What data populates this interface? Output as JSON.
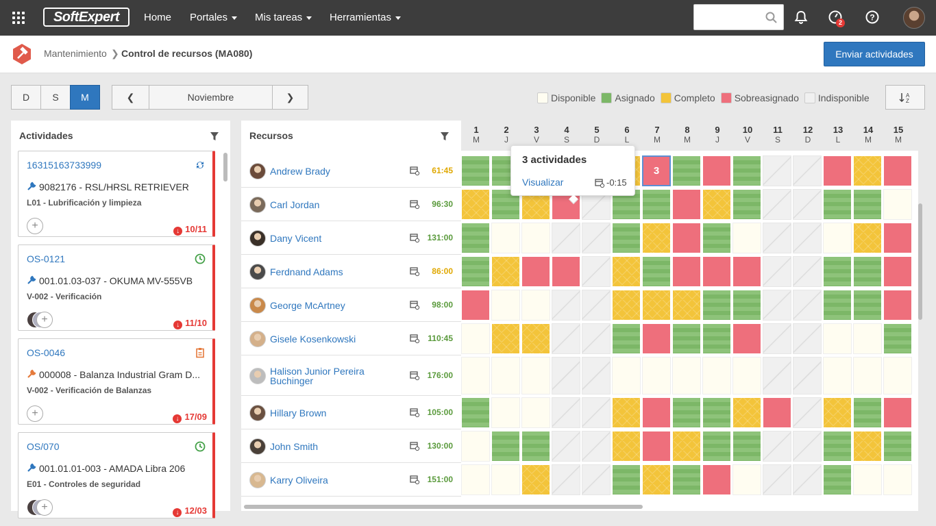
{
  "topbar": {
    "logo": "SoftExpert",
    "nav": [
      "Home",
      "Portales",
      "Mis tareas",
      "Herramientas"
    ],
    "notification_badge": "2"
  },
  "breadcrumb": {
    "parent": "Mantenimiento",
    "sep": "❯",
    "current": "Control de recursos (MA080)"
  },
  "actions": {
    "send": "Enviar actividades"
  },
  "view_modes": [
    "D",
    "S",
    "M"
  ],
  "period": {
    "prev": "❮",
    "label": "Noviembre",
    "next": "❯"
  },
  "legend": [
    {
      "label": "Disponible",
      "color": "#fffdf1"
    },
    {
      "label": "Asignado",
      "color": "#7cb767"
    },
    {
      "label": "Completo",
      "color": "#f3c43a"
    },
    {
      "label": "Sobreasignado",
      "color": "#ee6f7c"
    },
    {
      "label": "Indisponible",
      "color": "#f0f0f0"
    }
  ],
  "activities": {
    "title": "Actividades",
    "cards": [
      {
        "id": "16315163733999",
        "asset": "9082176 - RSL/HRSL RETRIEVER",
        "task": "L01 - Lubrificación y limpieza",
        "date": "10/11",
        "status_icon": "sync-icon",
        "status_color": "#2f77be"
      },
      {
        "id": "OS-0121",
        "asset": "001.01.03-037 - OKUMA MV-555VB",
        "task": "V-002 - Verificación",
        "date": "11/10",
        "status_icon": "clock-icon",
        "status_color": "#43a047"
      },
      {
        "id": "OS-0046",
        "asset": "000008 - Balanza Industrial Gram D...",
        "task": "V-002 - Verificación de Balanzas",
        "date": "17/09",
        "status_icon": "clipboard-icon",
        "status_color": "#e57a3c"
      },
      {
        "id": "OS/070",
        "asset": "001.01.01-003 - AMADA Libra 206",
        "task": "E01 - Controles de seguridad",
        "date": "12/03",
        "status_icon": "clock-icon",
        "status_color": "#43a047"
      }
    ]
  },
  "resources": {
    "title": "Recursos",
    "rows": [
      {
        "name": "Andrew Brady",
        "hours": "61:45",
        "hours_color": "#e0a800",
        "avatar": "#6b4b3a"
      },
      {
        "name": "Carl Jordan",
        "hours": "96:30",
        "hours_color": "#5a9a3c",
        "avatar": "#7a6a5a"
      },
      {
        "name": "Dany Vicent",
        "hours": "131:00",
        "hours_color": "#5a9a3c",
        "avatar": "#3a3028"
      },
      {
        "name": "Ferdnand Adams",
        "hours": "86:00",
        "hours_color": "#e0a800",
        "avatar": "#4a4a4a"
      },
      {
        "name": "George McArtney",
        "hours": "98:00",
        "hours_color": "#5a9a3c",
        "avatar": "#c9894a"
      },
      {
        "name": "Gisele Kosenkowski",
        "hours": "110:45",
        "hours_color": "#5a9a3c",
        "avatar": "#d4b08a"
      },
      {
        "name": "Halison Junior Pereira Buchinger",
        "hours": "176:00",
        "hours_color": "#5a9a3c",
        "avatar": "#bdbdbd"
      },
      {
        "name": "Hillary Brown",
        "hours": "105:00",
        "hours_color": "#5a9a3c",
        "avatar": "#6a5040"
      },
      {
        "name": "John Smith",
        "hours": "130:00",
        "hours_color": "#5a9a3c",
        "avatar": "#4a4038"
      },
      {
        "name": "Karry Oliveira",
        "hours": "151:00",
        "hours_color": "#5a9a3c",
        "avatar": "#d8b890"
      }
    ]
  },
  "days": [
    {
      "n": "1",
      "d": "M"
    },
    {
      "n": "2",
      "d": "J"
    },
    {
      "n": "3",
      "d": "V"
    },
    {
      "n": "4",
      "d": "S"
    },
    {
      "n": "5",
      "d": "D"
    },
    {
      "n": "6",
      "d": "L"
    },
    {
      "n": "7",
      "d": "M"
    },
    {
      "n": "8",
      "d": "M"
    },
    {
      "n": "9",
      "d": "J"
    },
    {
      "n": "10",
      "d": "V"
    },
    {
      "n": "11",
      "d": "S"
    },
    {
      "n": "12",
      "d": "D"
    },
    {
      "n": "13",
      "d": "L"
    },
    {
      "n": "14",
      "d": "M"
    },
    {
      "n": "15",
      "d": "M"
    }
  ],
  "grid": [
    [
      "as",
      "as",
      "as",
      "as",
      "un",
      "co",
      "ov",
      "as",
      "ov",
      "as",
      "un",
      "un",
      "ov",
      "co",
      "ov"
    ],
    [
      "co",
      "as",
      "co",
      "ov",
      "un",
      "as",
      "as",
      "ov",
      "co",
      "as",
      "un",
      "un",
      "as",
      "as",
      "av"
    ],
    [
      "as",
      "av",
      "av",
      "un",
      "un",
      "as",
      "co",
      "ov",
      "as",
      "av",
      "un",
      "un",
      "av",
      "co",
      "ov"
    ],
    [
      "as",
      "co",
      "ov",
      "ov",
      "un",
      "co",
      "as",
      "ov",
      "ov",
      "ov",
      "un",
      "un",
      "as",
      "as",
      "ov"
    ],
    [
      "ov",
      "av",
      "av",
      "un",
      "un",
      "co",
      "co",
      "co",
      "as",
      "as",
      "un",
      "un",
      "as",
      "as",
      "ov"
    ],
    [
      "av",
      "co",
      "co",
      "un",
      "un",
      "as",
      "ov",
      "as",
      "as",
      "ov",
      "un",
      "un",
      "av",
      "av",
      "as"
    ],
    [
      "av",
      "av",
      "av",
      "un",
      "un",
      "av",
      "av",
      "av",
      "av",
      "av",
      "un",
      "un",
      "av",
      "av",
      "av"
    ],
    [
      "as",
      "av",
      "av",
      "un",
      "un",
      "co",
      "ov",
      "as",
      "as",
      "co",
      "ov",
      "un",
      "co",
      "as",
      "ov"
    ],
    [
      "av",
      "as",
      "as",
      "un",
      "un",
      "co",
      "ov",
      "co",
      "as",
      "as",
      "un",
      "un",
      "as",
      "co",
      "as"
    ],
    [
      "av",
      "av",
      "co",
      "un",
      "un",
      "as",
      "co",
      "as",
      "ov",
      "av",
      "un",
      "un",
      "as",
      "av",
      "av"
    ]
  ],
  "highlight": {
    "row": 0,
    "col": 6,
    "count": "3"
  },
  "tooltip": {
    "title": "3 actividades",
    "link": "Visualizar",
    "value": "-0:15"
  }
}
